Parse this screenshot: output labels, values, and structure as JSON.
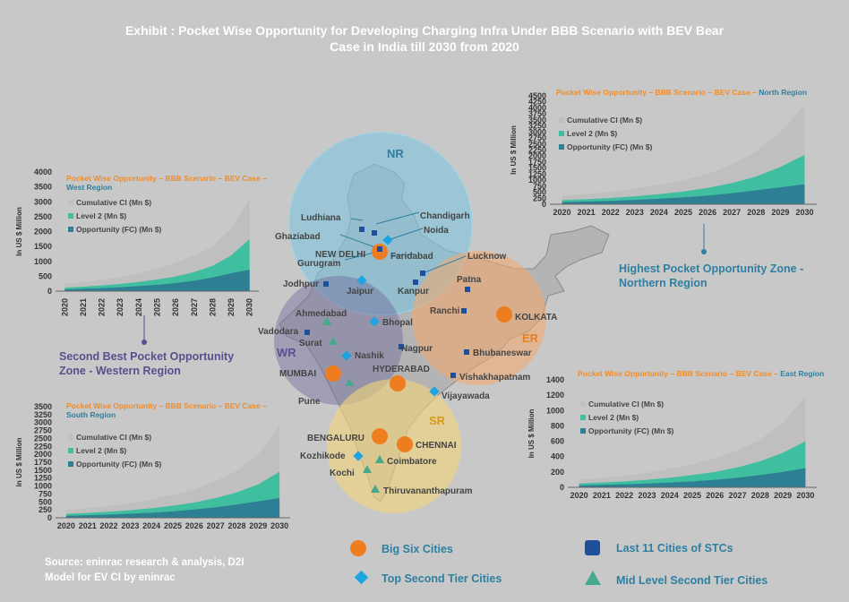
{
  "title_line1": "Exhibit : Pocket Wise Opportunity for Developing Charging Infra Under BBB Scenario with BEV Bear",
  "title_line2": "Case in India till 2030 from 2020",
  "source_line1": "Source: eninrac research & analysis, D2I",
  "source_line2": "Model for EV CI by eninrac",
  "colors": {
    "cumulative": "#bfbfbf",
    "level2": "#3fbf9f",
    "fc": "#2e7f93",
    "title_orange": "#f28c28",
    "region_blue": "#2e7fa0"
  },
  "region_labels": {
    "nr": "NR",
    "wr": "WR",
    "er": "ER",
    "sr": "SR"
  },
  "callouts": {
    "north": [
      "Highest Pocket Opportunity Zone -",
      "Northern Region"
    ],
    "west": [
      "Second Best Pocket Opportunity",
      "Zone - Western Region"
    ]
  },
  "cities": {
    "ludhiana": "Ludhiana",
    "chandigarh": "Chandigarh",
    "ghaziabad": "Ghaziabad",
    "noida": "Noida",
    "new_delhi": "NEW DELHI",
    "faridabad": "Faridabad",
    "gurugram": "Gurugram",
    "lucknow": "Lucknow",
    "jodhpur": "Jodhpur",
    "jaipur": "Jaipur",
    "kanpur": "Kanpur",
    "patna": "Patna",
    "ahmedabad": "Ahmedabad",
    "bhopal": "Bhopal",
    "ranchi": "Ranchi",
    "kolkata": "KOLKATA",
    "vadodara": "Vadodara",
    "surat": "Surat",
    "nagpur": "Nagpur",
    "bhubaneswar": "Bhubaneswar",
    "nashik": "Nashik",
    "mumbai": "MUMBAI",
    "hyderabad": "HYDERABAD",
    "vishakhapatnam": "Vishakhapatnam",
    "pune": "Pune",
    "vijayawada": "Vijayawada",
    "bengaluru": "BENGALURU",
    "chennai": "CHENNAI",
    "kozhikode": "Kozhikode",
    "coimbatore": "Coimbatore",
    "kochi": "Kochi",
    "thiruvananthapuram": "Thiruvananthapuram"
  },
  "legend": {
    "big_six": "Big Six Cities",
    "top_second": "Top Second Tier Cities",
    "last_eleven": "Last 11 Cities of STCs",
    "mid_level": "Mid Level Second Tier Cities"
  },
  "chart_data": [
    {
      "type": "area",
      "region": "west",
      "title_prefix": "Pocket Wise Opportunity – BBB Scenario – BEV Case – ",
      "title_region": "West Region",
      "ylabel": "In US $ Million",
      "x": [
        "2020",
        "2021",
        "2022",
        "2023",
        "2024",
        "2025",
        "2026",
        "2027",
        "2028",
        "2029",
        "2030"
      ],
      "ylim": [
        0,
        4000
      ],
      "yticks": [
        0,
        500,
        1000,
        1500,
        2000,
        2500,
        3000,
        3500,
        4000
      ],
      "series": [
        {
          "name": "Cumulative CI (Mn $)",
          "values": [
            250,
            300,
            380,
            480,
            600,
            760,
            960,
            1200,
            1500,
            2100,
            3100
          ]
        },
        {
          "name": "Level 2 (Mn $)",
          "values": [
            120,
            150,
            190,
            240,
            310,
            390,
            490,
            640,
            850,
            1200,
            1750
          ]
        },
        {
          "name": "Opportunity (FC) (Mn $)",
          "values": [
            60,
            80,
            100,
            130,
            170,
            210,
            270,
            350,
            460,
            600,
            720
          ]
        }
      ]
    },
    {
      "type": "area",
      "region": "north",
      "title_prefix": "Pocket Wise Opportunity – BBB Scenario – BEV Case – ",
      "title_region": "North Region",
      "ylabel": "In US $ Million",
      "x": [
        "2020",
        "2021",
        "2022",
        "2023",
        "2024",
        "2025",
        "2026",
        "2027",
        "2028",
        "2029",
        "2030"
      ],
      "ylim": [
        0,
        4500
      ],
      "yticks": [
        0,
        250,
        500,
        750,
        1000,
        1250,
        1500,
        1750,
        2000,
        2250,
        2500,
        2750,
        3000,
        3250,
        3500,
        3750,
        4000,
        4250,
        4500
      ],
      "series": [
        {
          "name": "Cumulative CI (Mn $)",
          "values": [
            350,
            420,
            520,
            650,
            810,
            1000,
            1250,
            1650,
            2200,
            3000,
            4100
          ]
        },
        {
          "name": "Level 2 (Mn $)",
          "values": [
            170,
            210,
            260,
            330,
            420,
            530,
            680,
            880,
            1150,
            1550,
            2050
          ]
        },
        {
          "name": "Opportunity (FC) (Mn $)",
          "values": [
            90,
            110,
            140,
            180,
            230,
            290,
            360,
            460,
            580,
            700,
            830
          ]
        }
      ]
    },
    {
      "type": "area",
      "region": "south",
      "title_prefix": "Pocket Wise Opportunity – BBB Scenario – BEV Case – ",
      "title_region": "South Region",
      "ylabel": "In US $ Million",
      "x": [
        "2020",
        "2021",
        "2022",
        "2023",
        "2024",
        "2025",
        "2026",
        "2027",
        "2028",
        "2029",
        "2030"
      ],
      "ylim": [
        0,
        3500
      ],
      "yticks": [
        0,
        250,
        500,
        750,
        1000,
        1250,
        1500,
        1750,
        2000,
        2250,
        2500,
        2750,
        3000,
        3250,
        3500
      ],
      "series": [
        {
          "name": "Cumulative CI (Mn $)",
          "values": [
            250,
            300,
            370,
            460,
            580,
            720,
            900,
            1150,
            1480,
            2000,
            2900
          ]
        },
        {
          "name": "Level 2 (Mn $)",
          "values": [
            120,
            150,
            190,
            240,
            300,
            380,
            480,
            620,
            800,
            1050,
            1450
          ]
        },
        {
          "name": "Opportunity (FC) (Mn $)",
          "values": [
            60,
            80,
            100,
            130,
            160,
            200,
            260,
            330,
            420,
            520,
            620
          ]
        }
      ]
    },
    {
      "type": "area",
      "region": "east",
      "title_prefix": "Pocket Wise Opportunity – BBB Scenario – BEV Case – ",
      "title_region": "East Region",
      "ylabel": "In US $ Million",
      "x": [
        "2020",
        "2021",
        "2022",
        "2023",
        "2024",
        "2025",
        "2026",
        "2027",
        "2028",
        "2029",
        "2030"
      ],
      "ylim": [
        0,
        1400
      ],
      "yticks": [
        0,
        200,
        400,
        600,
        800,
        1000,
        1200,
        1400
      ],
      "series": [
        {
          "name": "Cumulative CI (Mn $)",
          "values": [
            100,
            120,
            150,
            190,
            240,
            300,
            380,
            480,
            620,
            840,
            1180
          ]
        },
        {
          "name": "Level 2 (Mn $)",
          "values": [
            50,
            62,
            78,
            98,
            125,
            160,
            200,
            260,
            340,
            450,
            600
          ]
        },
        {
          "name": "Opportunity (FC) (Mn $)",
          "values": [
            25,
            32,
            40,
            50,
            62,
            78,
            98,
            125,
            160,
            200,
            250
          ]
        }
      ]
    }
  ]
}
